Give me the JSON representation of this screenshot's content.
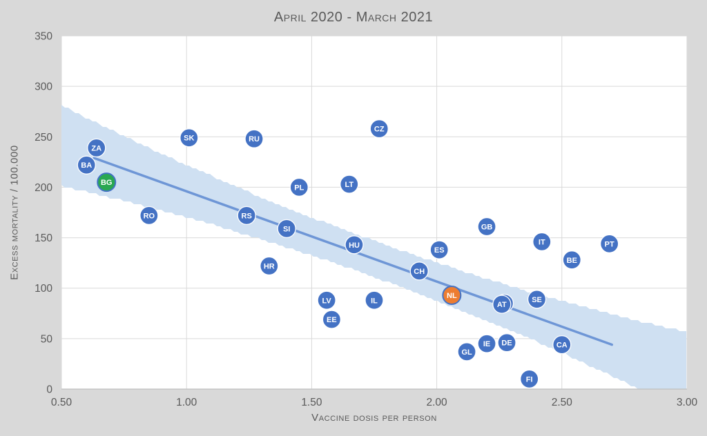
{
  "title": "April 2020 - March 2021",
  "colors": {
    "background": "#d9d9d9",
    "plot_background": "#ffffff",
    "gridline": "#d9d9d9",
    "axis_line": "#bfbfbf",
    "text": "#595959",
    "marker_blue": "#4472c4",
    "marker_green": "#2aa851",
    "marker_orange": "#ed7d31",
    "marker_border_white": "#ffffff",
    "marker_border_blue": "#4472c4",
    "trend_line": "#6e96d6",
    "confidence_band": "#cfe0f2"
  },
  "chart_data": {
    "type": "scatter",
    "title": "April 2020 - March 2021",
    "xlabel": "Vaccine dosis per person",
    "ylabel": "Excess mortality / 100.000",
    "xlim": [
      0.5,
      3.0
    ],
    "ylim": [
      0,
      350
    ],
    "x_ticks": [
      0.5,
      1.0,
      1.5,
      2.0,
      2.5,
      3.0
    ],
    "x_tick_labels": [
      "0.50",
      "1.00",
      "1.50",
      "2.00",
      "2.50",
      "3.00"
    ],
    "y_ticks": [
      0,
      50,
      100,
      150,
      200,
      250,
      300,
      350
    ],
    "y_tick_labels": [
      "0",
      "50",
      "100",
      "150",
      "200",
      "250",
      "300",
      "350"
    ],
    "grid": true,
    "legend": false,
    "points": [
      {
        "label": "BA",
        "x": 0.6,
        "y": 222,
        "color": "blue"
      },
      {
        "label": "ZA",
        "x": 0.64,
        "y": 239,
        "color": "blue"
      },
      {
        "label": "BG",
        "x": 0.68,
        "y": 205,
        "color": "green"
      },
      {
        "label": "RO",
        "x": 0.85,
        "y": 172,
        "color": "blue"
      },
      {
        "label": "SK",
        "x": 1.01,
        "y": 249,
        "color": "blue"
      },
      {
        "label": "RS",
        "x": 1.24,
        "y": 172,
        "color": "blue"
      },
      {
        "label": "RU",
        "x": 1.27,
        "y": 248,
        "color": "blue"
      },
      {
        "label": "HR",
        "x": 1.33,
        "y": 122,
        "color": "blue"
      },
      {
        "label": "SI",
        "x": 1.4,
        "y": 159,
        "color": "blue"
      },
      {
        "label": "PL",
        "x": 1.45,
        "y": 200,
        "color": "blue"
      },
      {
        "label": "LV",
        "x": 1.56,
        "y": 88,
        "color": "blue"
      },
      {
        "label": "EE",
        "x": 1.58,
        "y": 69,
        "color": "blue"
      },
      {
        "label": "LT",
        "x": 1.65,
        "y": 203,
        "color": "blue"
      },
      {
        "label": "HU",
        "x": 1.67,
        "y": 143,
        "color": "blue"
      },
      {
        "label": "IL",
        "x": 1.75,
        "y": 88,
        "color": "blue"
      },
      {
        "label": "CZ",
        "x": 1.77,
        "y": 258,
        "color": "blue"
      },
      {
        "label": "CH",
        "x": 1.93,
        "y": 117,
        "color": "blue"
      },
      {
        "label": "ES",
        "x": 2.01,
        "y": 138,
        "color": "blue"
      },
      {
        "label": "NL",
        "x": 2.06,
        "y": 93,
        "color": "orange"
      },
      {
        "label": "GL",
        "x": 2.12,
        "y": 37,
        "color": "blue"
      },
      {
        "label": "IE",
        "x": 2.2,
        "y": 45,
        "color": "blue"
      },
      {
        "label": "GB",
        "x": 2.2,
        "y": 161,
        "color": "blue"
      },
      {
        "label": "FR",
        "x": 2.27,
        "y": 85,
        "color": "blue"
      },
      {
        "label": "AT",
        "x": 2.26,
        "y": 84,
        "color": "blue"
      },
      {
        "label": "DE",
        "x": 2.28,
        "y": 46,
        "color": "blue"
      },
      {
        "label": "FI",
        "x": 2.37,
        "y": 10,
        "color": "blue"
      },
      {
        "label": "SE",
        "x": 2.4,
        "y": 89,
        "color": "blue"
      },
      {
        "label": "IT",
        "x": 2.42,
        "y": 146,
        "color": "blue"
      },
      {
        "label": "CA",
        "x": 2.5,
        "y": 44,
        "color": "blue"
      },
      {
        "label": "BE",
        "x": 2.54,
        "y": 128,
        "color": "blue"
      },
      {
        "label": "PT",
        "x": 2.69,
        "y": 144,
        "color": "blue"
      }
    ],
    "trend_line": {
      "x1": 0.63,
      "y1": 229,
      "x2": 2.7,
      "y2": 44
    },
    "confidence_band": {
      "x": [
        0.5,
        0.625,
        0.75,
        0.875,
        1.0,
        1.125,
        1.25,
        1.375,
        1.5,
        1.625,
        1.75,
        1.875,
        2.0,
        2.125,
        2.25,
        2.375,
        2.5,
        2.625,
        2.75,
        2.875,
        3.0
      ],
      "upper": [
        281,
        265.5,
        250.5,
        236,
        222,
        208.5,
        195,
        182.5,
        170,
        158.5,
        147,
        136,
        125.5,
        115,
        105.5,
        96,
        87.5,
        79,
        71,
        63.5,
        57
      ],
      "lower": [
        201,
        194,
        186.5,
        178.5,
        170,
        161.5,
        152,
        142.5,
        132.5,
        122,
        111,
        99.5,
        87.5,
        75,
        62.5,
        49.5,
        36,
        21.5,
        7,
        -8,
        -23
      ]
    }
  }
}
